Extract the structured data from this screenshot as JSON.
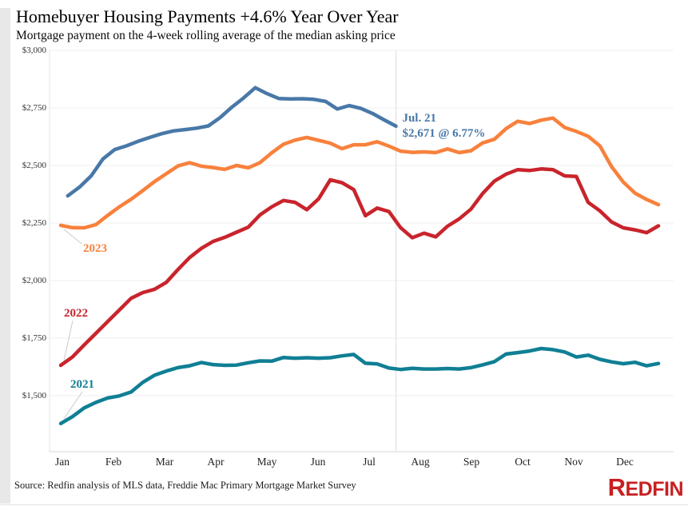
{
  "chart_data": {
    "type": "line",
    "title": "Homebuyer Housing Payments +4.6% Year Over Year",
    "subtitle": "Mortgage payment on the 4-week rolling average of the median asking price",
    "x_labels": [
      "Jan",
      "Feb",
      "Mar",
      "Apr",
      "May",
      "Jun",
      "Jul",
      "Aug",
      "Sep",
      "Oct",
      "Nov",
      "Dec"
    ],
    "y_ticks": [
      {
        "label": "$3,000",
        "value": 3000
      },
      {
        "label": "$2,750",
        "value": 2750
      },
      {
        "label": "$2,500",
        "value": 2500
      },
      {
        "label": "$2,250",
        "value": 2250
      },
      {
        "label": "$2,000",
        "value": 2000
      },
      {
        "label": "$1,750",
        "value": 1750
      },
      {
        "label": "$1,500",
        "value": 1500
      }
    ],
    "ylim": [
      1257,
      3000
    ],
    "grid": "horizontal",
    "legend_position": "inline-labels",
    "series": [
      {
        "label": "2021",
        "color": "#107f95",
        "start_week": 0,
        "values": [
          1379,
          1409,
          1447,
          1471,
          1490,
          1499,
          1516,
          1558,
          1589,
          1607,
          1622,
          1630,
          1644,
          1635,
          1632,
          1633,
          1643,
          1651,
          1650,
          1666,
          1663,
          1665,
          1663,
          1665,
          1673,
          1679,
          1641,
          1638,
          1620,
          1614,
          1619,
          1616,
          1616,
          1618,
          1616,
          1622,
          1634,
          1648,
          1681,
          1687,
          1694,
          1705,
          1700,
          1690,
          1668,
          1676,
          1658,
          1647,
          1639,
          1645,
          1630,
          1640
        ]
      },
      {
        "label": "2022",
        "color": "#c9242c",
        "start_week": 0,
        "values": [
          1632,
          1668,
          1720,
          1771,
          1822,
          1872,
          1923,
          1948,
          1962,
          1992,
          2048,
          2100,
          2140,
          2170,
          2188,
          2210,
          2232,
          2285,
          2320,
          2348,
          2340,
          2308,
          2355,
          2438,
          2425,
          2395,
          2282,
          2315,
          2300,
          2230,
          2186,
          2206,
          2190,
          2236,
          2268,
          2310,
          2378,
          2432,
          2462,
          2482,
          2478,
          2485,
          2482,
          2455,
          2452,
          2340,
          2303,
          2255,
          2229,
          2220,
          2208,
          2238
        ]
      },
      {
        "label": "2023",
        "color": "#f8813c",
        "start_week": 0,
        "values": [
          2240,
          2230,
          2229,
          2243,
          2283,
          2320,
          2353,
          2391,
          2430,
          2464,
          2498,
          2512,
          2497,
          2491,
          2483,
          2500,
          2490,
          2512,
          2555,
          2592,
          2610,
          2622,
          2609,
          2597,
          2573,
          2590,
          2590,
          2603,
          2584,
          2562,
          2557,
          2559,
          2556,
          2572,
          2556,
          2564,
          2598,
          2614,
          2660,
          2692,
          2682,
          2697,
          2706,
          2665,
          2648,
          2627,
          2585,
          2495,
          2428,
          2380,
          2352,
          2330
        ]
      },
      {
        "color": "#4878a8",
        "start_week": 0.6,
        "annotation": [
          "Jul. 21",
          "$2,671 @ 6.77%"
        ],
        "values": [
          2368,
          2406,
          2455,
          2528,
          2569,
          2585,
          2605,
          2622,
          2638,
          2650,
          2656,
          2662,
          2672,
          2708,
          2753,
          2793,
          2838,
          2812,
          2791,
          2789,
          2790,
          2787,
          2778,
          2745,
          2760,
          2748,
          2726,
          2698,
          2671
        ]
      }
    ],
    "annotation_color": "#4878a8"
  },
  "footer": {
    "source": "Source: Redfin analysis of MLS data, Freddie Mac Primary Mortgage Market Survey",
    "logo_first_letter": "R",
    "logo_rest": "EDFIN",
    "logo_color": "#c82021"
  }
}
